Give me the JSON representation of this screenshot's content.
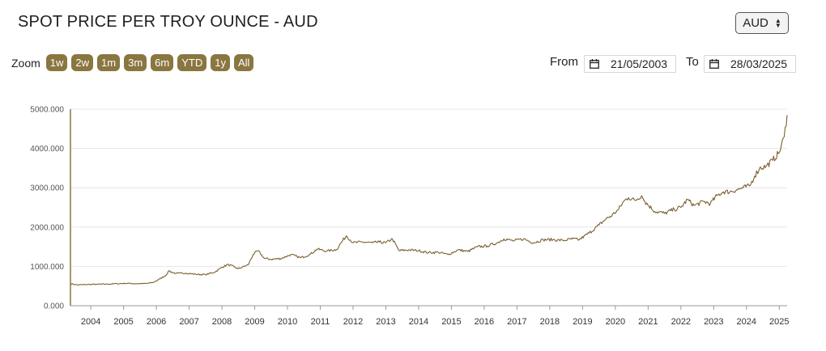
{
  "header": {
    "title": "SPOT PRICE PER TROY OUNCE - AUD"
  },
  "currency": {
    "selected": "AUD"
  },
  "zoom": {
    "label": "Zoom",
    "buttons": [
      "1w",
      "2w",
      "1m",
      "3m",
      "6m",
      "YTD",
      "1y",
      "All"
    ]
  },
  "range": {
    "from_label": "From",
    "from_value": "21/05/2003",
    "to_label": "To",
    "to_value": "28/03/2025"
  },
  "colors": {
    "accent": "#8a7640",
    "line": "#7a6130",
    "grid": "#e6e6e6"
  },
  "chart_data": {
    "type": "line",
    "title": "SPOT PRICE PER TROY OUNCE - AUD",
    "xlim": [
      2003.38,
      2025.24
    ],
    "ylim": [
      0,
      5000
    ],
    "y_ticks": [
      "0.000",
      "1000.000",
      "2000.000",
      "3000.000",
      "4000.000",
      "5000.000"
    ],
    "x_ticks": [
      "2004",
      "2005",
      "2006",
      "2007",
      "2008",
      "2009",
      "2010",
      "2011",
      "2012",
      "2013",
      "2014",
      "2015",
      "2016",
      "2017",
      "2018",
      "2019",
      "2020",
      "2021",
      "2022",
      "2023",
      "2024",
      "2025"
    ],
    "grid": true,
    "series": [
      {
        "x": [
          2003.38,
          2003.6,
          2003.9,
          2004.2,
          2004.5,
          2004.8,
          2005.1,
          2005.4,
          2005.7,
          2005.9,
          2006.1,
          2006.3,
          2006.37,
          2006.6,
          2006.9,
          2007.2,
          2007.5,
          2007.8,
          2008.0,
          2008.2,
          2008.5,
          2008.8,
          2008.95,
          2009.1,
          2009.3,
          2009.5,
          2009.8,
          2010.1,
          2010.4,
          2010.7,
          2010.9,
          2011.2,
          2011.5,
          2011.65,
          2011.8,
          2012.0,
          2012.3,
          2012.6,
          2012.8,
          2013.0,
          2013.2,
          2013.4,
          2013.7,
          2014.0,
          2014.3,
          2014.6,
          2014.9,
          2015.2,
          2015.5,
          2015.8,
          2016.1,
          2016.4,
          2016.6,
          2016.9,
          2017.2,
          2017.5,
          2017.8,
          2018.1,
          2018.4,
          2018.7,
          2018.9,
          2019.2,
          2019.5,
          2019.7,
          2019.9,
          2020.1,
          2020.25,
          2020.4,
          2020.6,
          2020.8,
          2020.9,
          2021.2,
          2021.5,
          2021.8,
          2022.0,
          2022.2,
          2022.4,
          2022.7,
          2022.9,
          2023.1,
          2023.3,
          2023.5,
          2023.7,
          2023.9,
          2024.1,
          2024.25,
          2024.4,
          2024.6,
          2024.8,
          2025.0,
          2025.15,
          2025.24
        ],
        "y": [
          560,
          530,
          540,
          545,
          550,
          560,
          570,
          560,
          565,
          590,
          680,
          780,
          880,
          820,
          830,
          800,
          790,
          860,
          980,
          1050,
          940,
          1040,
          1300,
          1400,
          1200,
          1180,
          1200,
          1300,
          1220,
          1310,
          1440,
          1390,
          1430,
          1620,
          1780,
          1600,
          1620,
          1600,
          1620,
          1600,
          1700,
          1400,
          1420,
          1400,
          1350,
          1360,
          1300,
          1420,
          1380,
          1500,
          1520,
          1600,
          1700,
          1650,
          1700,
          1600,
          1680,
          1680,
          1660,
          1700,
          1680,
          1850,
          2050,
          2200,
          2300,
          2450,
          2650,
          2750,
          2680,
          2800,
          2650,
          2400,
          2350,
          2450,
          2500,
          2700,
          2550,
          2650,
          2600,
          2800,
          2900,
          2900,
          2950,
          3000,
          3050,
          3300,
          3500,
          3550,
          3700,
          3900,
          4300,
          4850
        ]
      }
    ]
  }
}
